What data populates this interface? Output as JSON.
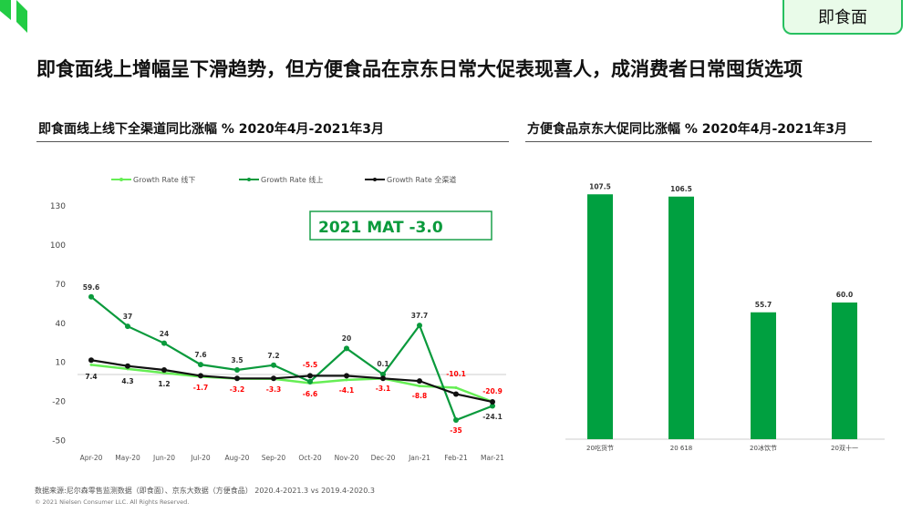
{
  "tag": "即食面",
  "title": "即食面线上增幅呈下滑趋势，但方便食品在京东日常大促表现喜人，成消费者日常囤货选项",
  "footer": {
    "source": "数据来源:尼尔森零售监测数据（即食面）、京东大数据（方便食品） 2020.4-2021.3 vs 2019.4-2020.3",
    "copyright": "© 2021 Nielsen Consumer LLC. All Rights Reserved."
  },
  "colors": {
    "offline": "#66ee55",
    "online": "#0a9a3c",
    "total": "#111111",
    "bar": "#00a040",
    "negative_label": "#ff0000"
  },
  "chart_data": [
    {
      "type": "line",
      "title": "即食面线上线下全渠道同比涨幅 % 2020年4月-2021年3月",
      "categories": [
        "Apr-20",
        "May-20",
        "Jun-20",
        "Jul-20",
        "Aug-20",
        "Sep-20",
        "Oct-20",
        "Nov-20",
        "Dec-20",
        "Jan-21",
        "Feb-21",
        "Mar-21"
      ],
      "yticks": [
        130,
        100,
        70,
        40,
        10,
        -20,
        -50
      ],
      "ylim": [
        -50,
        130
      ],
      "annotation": "2021 MAT -3.0",
      "legend": "top",
      "series": [
        {
          "name": "Growth Rate 线下",
          "values": [
            7.4,
            4.3,
            1.2,
            -1.7,
            -3.2,
            -3.3,
            -6.6,
            -4.1,
            -3.1,
            -8.8,
            -10.1,
            -20.9
          ],
          "labels": [
            "7.4",
            "4.3",
            "1.2",
            "-1.7",
            "-3.2",
            "-3.3",
            "-6.6",
            "-4.1",
            "-3.1",
            "-8.8",
            "-10.1",
            "-20.9"
          ]
        },
        {
          "name": "Growth Rate 线上",
          "values": [
            59.6,
            37,
            24,
            7.6,
            3.5,
            7.2,
            -5.5,
            20,
            0.1,
            37.7,
            -35,
            -24.1
          ],
          "labels": [
            "59.6",
            "37",
            "24",
            "7.6",
            "3.5",
            "7.2",
            "-5.5",
            "20",
            "0.1",
            "37.7",
            "-35",
            "-24.1"
          ]
        },
        {
          "name": "Growth Rate 全渠道",
          "values": [
            11,
            6.5,
            3.5,
            -1,
            -3,
            -3,
            -1,
            -1,
            -3,
            -5,
            -15,
            -21
          ]
        }
      ]
    },
    {
      "type": "bar",
      "title": "方便食品京东大促同比涨幅 % 2020年4月-2021年3月",
      "categories": [
        "20吃货节",
        "20 618",
        "20冰饮节",
        "20双十一"
      ],
      "values": [
        107.5,
        106.5,
        55.7,
        60.0
      ],
      "labels": [
        "107.5",
        "106.5",
        "55.7",
        "60.0"
      ]
    }
  ]
}
